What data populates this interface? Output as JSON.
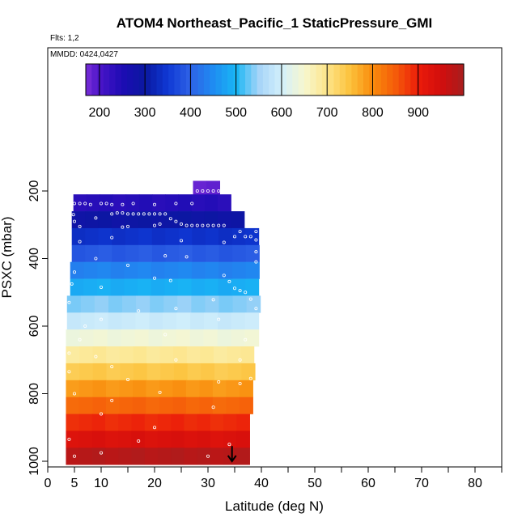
{
  "header": {
    "title": "ATOM4 Northeast_Pacific_1 StaticPressure_GMI",
    "flights": "Flts: 1,2",
    "dates": "MMDD: 0424,0427"
  },
  "colorbar": {
    "min": 170,
    "max": 1000,
    "tick_values": [
      200,
      300,
      400,
      500,
      600,
      700,
      800,
      900
    ],
    "tick_labels": [
      "200",
      "300",
      "400",
      "500",
      "600",
      "700",
      "800",
      "900"
    ],
    "stops": [
      {
        "value": 170,
        "color": "#7b2fd8"
      },
      {
        "value": 200,
        "color": "#4a14c8"
      },
      {
        "value": 250,
        "color": "#1d0cb4"
      },
      {
        "value": 300,
        "color": "#0a18a0"
      },
      {
        "value": 350,
        "color": "#0f38d4"
      },
      {
        "value": 400,
        "color": "#2e62e6"
      },
      {
        "value": 450,
        "color": "#1f8cf2"
      },
      {
        "value": 500,
        "color": "#18b6f4"
      },
      {
        "value": 550,
        "color": "#a6d4f8"
      },
      {
        "value": 600,
        "color": "#d3f0fb"
      },
      {
        "value": 650,
        "color": "#f7f7cf"
      },
      {
        "value": 700,
        "color": "#fde58a"
      },
      {
        "value": 750,
        "color": "#fcc23c"
      },
      {
        "value": 800,
        "color": "#f98b0c"
      },
      {
        "value": 850,
        "color": "#f55c0a"
      },
      {
        "value": 900,
        "color": "#eb1c0a"
      },
      {
        "value": 950,
        "color": "#d20d0d"
      },
      {
        "value": 1000,
        "color": "#a81e1e"
      }
    ]
  },
  "chart_data": {
    "type": "heatmap",
    "title": "ATOM4 Northeast_Pacific_1 StaticPressure_GMI",
    "xlabel": "Latitude (deg N)",
    "ylabel": "PSXC (mbar)",
    "xlim": [
      0,
      85
    ],
    "ylim": [
      1010,
      -140
    ],
    "x_ticks": [
      0,
      5,
      10,
      20,
      30,
      40,
      50,
      60,
      70,
      80
    ],
    "x_tick_labels": [
      "0",
      "5",
      "10",
      "20",
      "30",
      "40",
      "50",
      "60",
      "70",
      "80"
    ],
    "y_ticks": [
      200,
      400,
      600,
      800,
      1000
    ],
    "y_tick_labels": [
      "200",
      "400",
      "600",
      "800",
      "1000"
    ],
    "pressure_bins": [
      {
        "p_top": 170,
        "p_bottom": 210,
        "lat_start": 27.2,
        "lat_end": 32.2,
        "value": 188
      },
      {
        "p_top": 210,
        "p_bottom": 260,
        "lat_start": 4.8,
        "lat_end": 34.3,
        "value": 240
      },
      {
        "p_top": 260,
        "p_bottom": 310,
        "lat_start": 4.5,
        "lat_end": 36.8,
        "value": 290
      },
      {
        "p_top": 310,
        "p_bottom": 360,
        "lat_start": 4.5,
        "lat_end": 39.5,
        "value": 340
      },
      {
        "p_top": 360,
        "p_bottom": 410,
        "lat_start": 4.5,
        "lat_end": 39.6,
        "value": 390
      },
      {
        "p_top": 410,
        "p_bottom": 460,
        "lat_start": 4.2,
        "lat_end": 39.6,
        "value": 440
      },
      {
        "p_top": 460,
        "p_bottom": 510,
        "lat_start": 4.2,
        "lat_end": 39.5,
        "value": 490
      },
      {
        "p_top": 510,
        "p_bottom": 560,
        "lat_start": 3.6,
        "lat_end": 39.8,
        "value": 540
      },
      {
        "p_top": 560,
        "p_bottom": 610,
        "lat_start": 3.6,
        "lat_end": 39.5,
        "value": 590
      },
      {
        "p_top": 610,
        "p_bottom": 660,
        "lat_start": 3.4,
        "lat_end": 39.5,
        "value": 640
      },
      {
        "p_top": 660,
        "p_bottom": 710,
        "lat_start": 3.4,
        "lat_end": 38.6,
        "value": 690
      },
      {
        "p_top": 710,
        "p_bottom": 760,
        "lat_start": 3.4,
        "lat_end": 38.8,
        "value": 740
      },
      {
        "p_top": 760,
        "p_bottom": 810,
        "lat_start": 3.4,
        "lat_end": 38.4,
        "value": 790
      },
      {
        "p_top": 810,
        "p_bottom": 860,
        "lat_start": 3.4,
        "lat_end": 38.4,
        "value": 840
      },
      {
        "p_top": 860,
        "p_bottom": 910,
        "lat_start": 3.4,
        "lat_end": 37.8,
        "value": 890
      },
      {
        "p_top": 910,
        "p_bottom": 960,
        "lat_start": 3.4,
        "lat_end": 37.8,
        "value": 935
      },
      {
        "p_top": 960,
        "p_bottom": 1010,
        "lat_start": 3.4,
        "lat_end": 37.8,
        "value": 985
      }
    ],
    "sample_points": [
      [
        5,
        237
      ],
      [
        6,
        237
      ],
      [
        7,
        237
      ],
      [
        8,
        240
      ],
      [
        10,
        237
      ],
      [
        11,
        237
      ],
      [
        12,
        240
      ],
      [
        14,
        240
      ],
      [
        16,
        237
      ],
      [
        20,
        240
      ],
      [
        24,
        237
      ],
      [
        27,
        237
      ],
      [
        28,
        200
      ],
      [
        29,
        200
      ],
      [
        30,
        200
      ],
      [
        31,
        200
      ],
      [
        32,
        200
      ],
      [
        4.8,
        270
      ],
      [
        5,
        290
      ],
      [
        9,
        280
      ],
      [
        12,
        268
      ],
      [
        13,
        265
      ],
      [
        14,
        265
      ],
      [
        15,
        268
      ],
      [
        16,
        268
      ],
      [
        17,
        268
      ],
      [
        18,
        268
      ],
      [
        19,
        268
      ],
      [
        20,
        268
      ],
      [
        21,
        268
      ],
      [
        22,
        268
      ],
      [
        23,
        282
      ],
      [
        24,
        290
      ],
      [
        25,
        298
      ],
      [
        26,
        302
      ],
      [
        27,
        302
      ],
      [
        28,
        302
      ],
      [
        29,
        302
      ],
      [
        30,
        302
      ],
      [
        31,
        302
      ],
      [
        32,
        302
      ],
      [
        33,
        302
      ],
      [
        6,
        305
      ],
      [
        14,
        307
      ],
      [
        15,
        305
      ],
      [
        20,
        302
      ],
      [
        21,
        298
      ],
      [
        35,
        335
      ],
      [
        36,
        320
      ],
      [
        37,
        335
      ],
      [
        38,
        335
      ],
      [
        39,
        320
      ],
      [
        39,
        345
      ],
      [
        33,
        352
      ],
      [
        25,
        347
      ],
      [
        12,
        338
      ],
      [
        6,
        350
      ],
      [
        9,
        400
      ],
      [
        22,
        392
      ],
      [
        26,
        395
      ],
      [
        39,
        380
      ],
      [
        39,
        410
      ],
      [
        15,
        420
      ],
      [
        5,
        440
      ],
      [
        33,
        450
      ],
      [
        20,
        458
      ],
      [
        4.5,
        475
      ],
      [
        10,
        485
      ],
      [
        23,
        465
      ],
      [
        34,
        468
      ],
      [
        35,
        488
      ],
      [
        36,
        495
      ],
      [
        37,
        500
      ],
      [
        4,
        530
      ],
      [
        17,
        555
      ],
      [
        24,
        548
      ],
      [
        31,
        522
      ],
      [
        38,
        520
      ],
      [
        39,
        548
      ],
      [
        10,
        580
      ],
      [
        7,
        600
      ],
      [
        32,
        580
      ],
      [
        6,
        640
      ],
      [
        22,
        625
      ],
      [
        37,
        640
      ],
      [
        4,
        680
      ],
      [
        12,
        720
      ],
      [
        24,
        700
      ],
      [
        36,
        700
      ],
      [
        9,
        690
      ],
      [
        4,
        735
      ],
      [
        15,
        758
      ],
      [
        32,
        765
      ],
      [
        36,
        770
      ],
      [
        38,
        755
      ],
      [
        5,
        800
      ],
      [
        21,
        796
      ],
      [
        12,
        820
      ],
      [
        31,
        840
      ],
      [
        10,
        860
      ],
      [
        20,
        900
      ],
      [
        4,
        935
      ],
      [
        17,
        940
      ],
      [
        34,
        950
      ],
      [
        10,
        975
      ],
      [
        5,
        985
      ],
      [
        30,
        985
      ]
    ],
    "annotations": [
      {
        "type": "arrow",
        "x": 34.5,
        "y_from": 955,
        "y_to": 1000
      }
    ]
  }
}
